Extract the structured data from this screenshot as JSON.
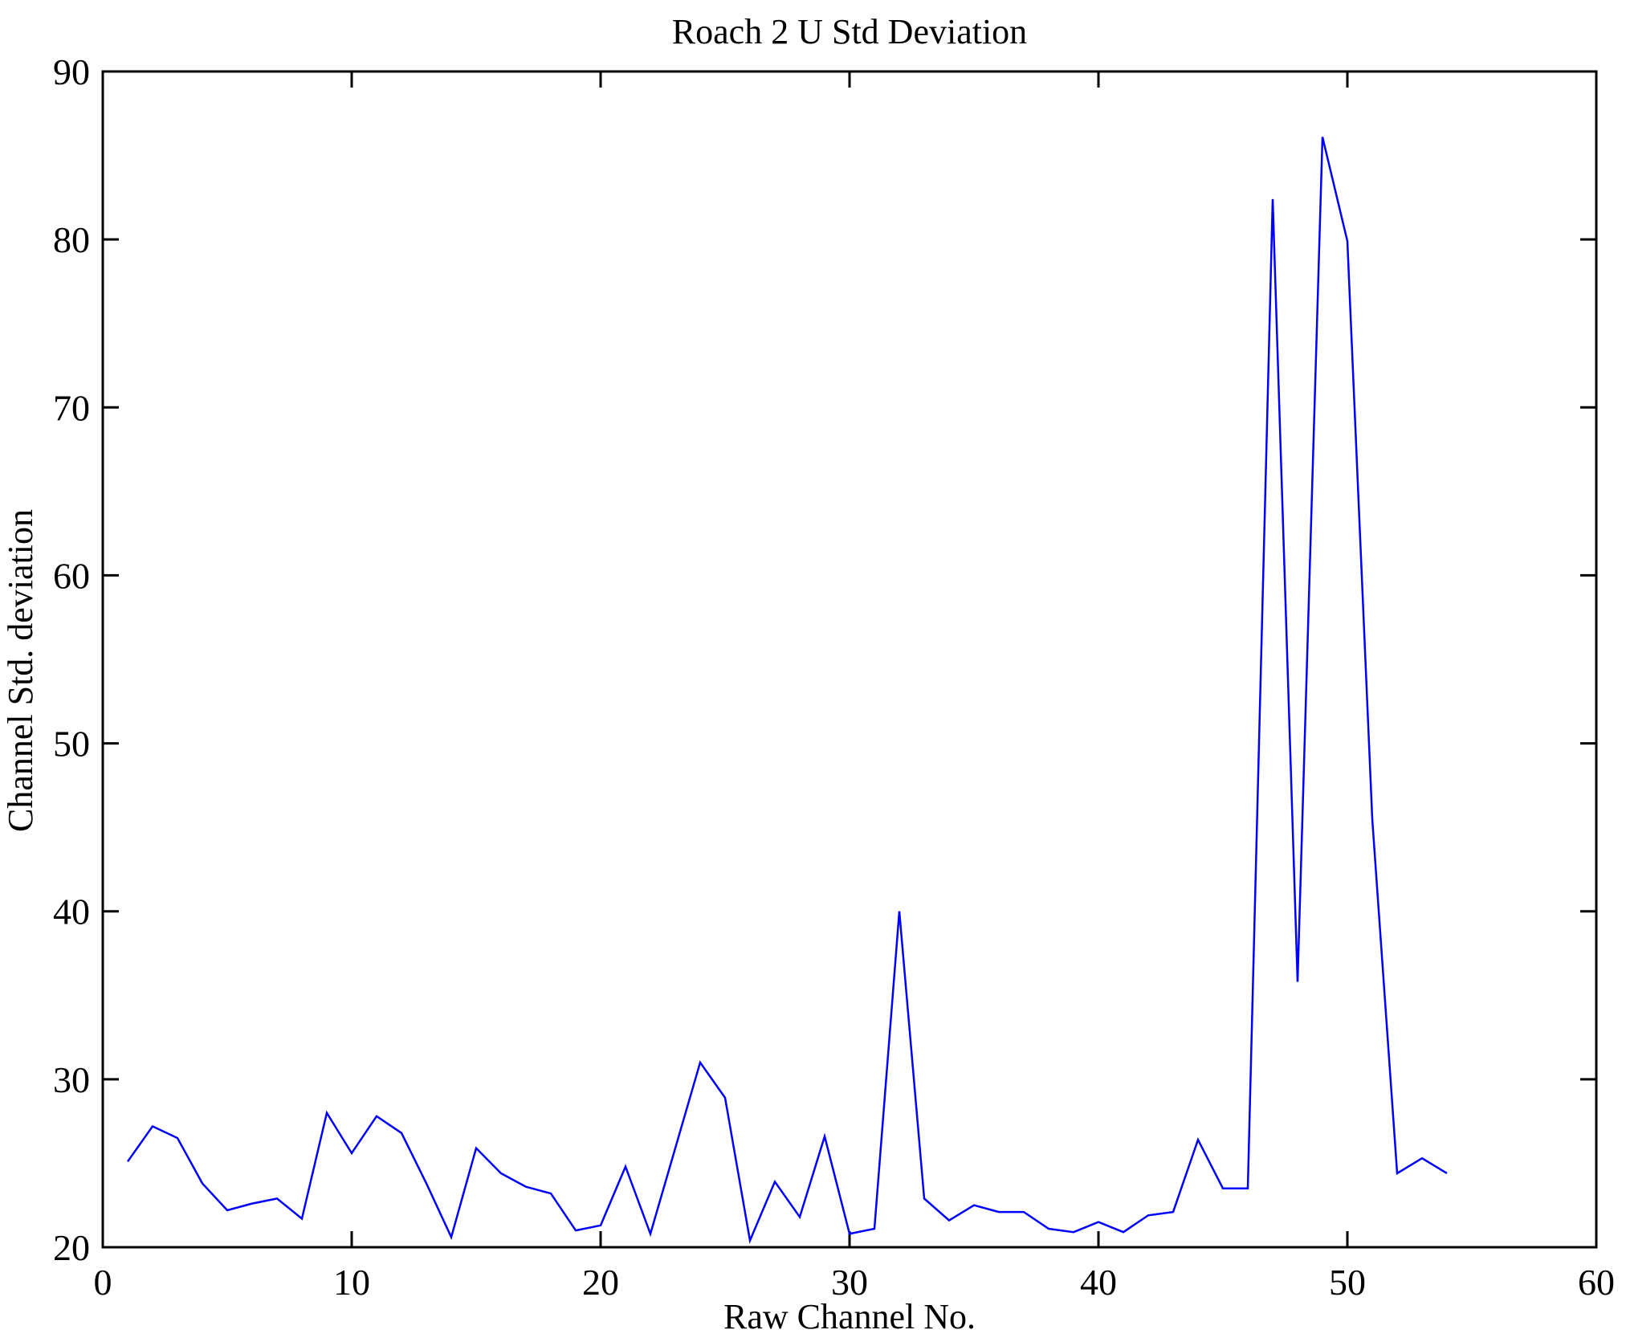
{
  "chart_data": {
    "type": "line",
    "title": "Roach 2 U Std Deviation",
    "xlabel": "Raw Channel No.",
    "ylabel": "Channel Std. deviation",
    "x": [
      1,
      2,
      3,
      4,
      5,
      6,
      7,
      8,
      9,
      10,
      11,
      12,
      13,
      14,
      15,
      16,
      17,
      18,
      19,
      20,
      21,
      22,
      23,
      24,
      25,
      26,
      27,
      28,
      29,
      30,
      31,
      32,
      33,
      34,
      35,
      36,
      37,
      38,
      39,
      40,
      41,
      42,
      43,
      44,
      45,
      46,
      47,
      48,
      49,
      50,
      51,
      52,
      53,
      54
    ],
    "values": [
      25.1,
      27.2,
      26.5,
      23.8,
      22.2,
      22.6,
      22.9,
      21.7,
      28.0,
      25.6,
      27.8,
      26.8,
      23.8,
      20.6,
      25.9,
      24.4,
      23.6,
      23.2,
      21.0,
      21.3,
      24.8,
      20.8,
      25.9,
      31.0,
      28.9,
      20.4,
      23.9,
      21.8,
      26.6,
      20.8,
      21.1,
      40.0,
      22.9,
      21.6,
      22.5,
      22.1,
      22.1,
      21.1,
      20.9,
      21.5,
      20.9,
      21.9,
      22.1,
      26.4,
      23.5,
      23.5,
      82.4,
      35.8,
      86.1,
      79.9,
      45.5,
      24.4,
      25.3,
      24.4
    ],
    "xlim": [
      0,
      60
    ],
    "ylim": [
      20,
      90
    ],
    "xticks": [
      0,
      10,
      20,
      30,
      40,
      50,
      60
    ],
    "yticks": [
      20,
      30,
      40,
      50,
      60,
      70,
      80,
      90
    ],
    "grid": false,
    "legend_position": "none",
    "line_color": "#0000FF",
    "axis_color": "#000000",
    "background_color": "#FFFFFF"
  }
}
